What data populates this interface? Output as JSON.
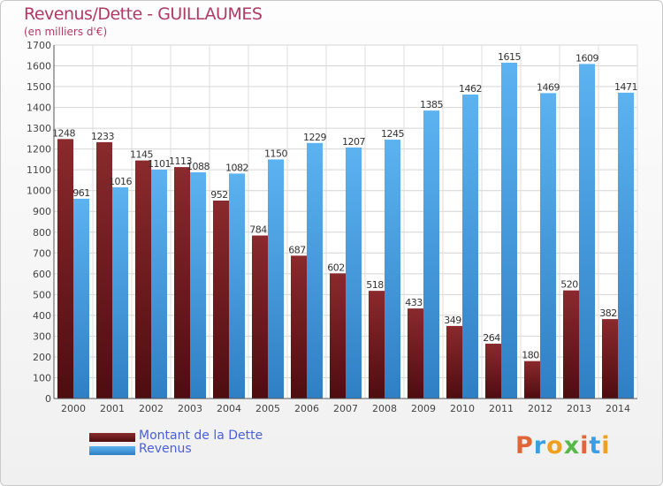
{
  "title": "Revenus/Dette - GUILLAUMES",
  "subtitle": "(en milliers d'€)",
  "colors": {
    "dette": "#7a1e20",
    "revenus": "#4aa3e6",
    "title": "#b03a62",
    "legend_text": "#4a5fd8"
  },
  "legend": {
    "items": [
      {
        "label": "Montant de la Dette",
        "color": "#7a1e20"
      },
      {
        "label": "Revenus",
        "color": "#4aa3e6"
      }
    ]
  },
  "logo": {
    "text": "Proxiti"
  },
  "chart_data": {
    "type": "bar",
    "title": "Revenus/Dette - GUILLAUMES",
    "subtitle": "(en milliers d'€)",
    "categories": [
      "2000",
      "2001",
      "2002",
      "2003",
      "2004",
      "2005",
      "2006",
      "2007",
      "2008",
      "2009",
      "2010",
      "2011",
      "2012",
      "2013",
      "2014"
    ],
    "series": [
      {
        "name": "Montant de la Dette",
        "values": [
          1248,
          1233,
          1145,
          1113,
          952,
          784,
          687,
          602,
          518,
          433,
          349,
          264,
          180,
          520,
          382
        ]
      },
      {
        "name": "Revenus",
        "values": [
          961,
          1016,
          1101,
          1088,
          1082,
          1150,
          1229,
          1207,
          1245,
          1385,
          1462,
          1615,
          1469,
          1609,
          1471
        ]
      }
    ],
    "ylim": [
      0,
      1700
    ],
    "ytick_step": 100,
    "grid": true,
    "legend_position": "bottom-left"
  }
}
